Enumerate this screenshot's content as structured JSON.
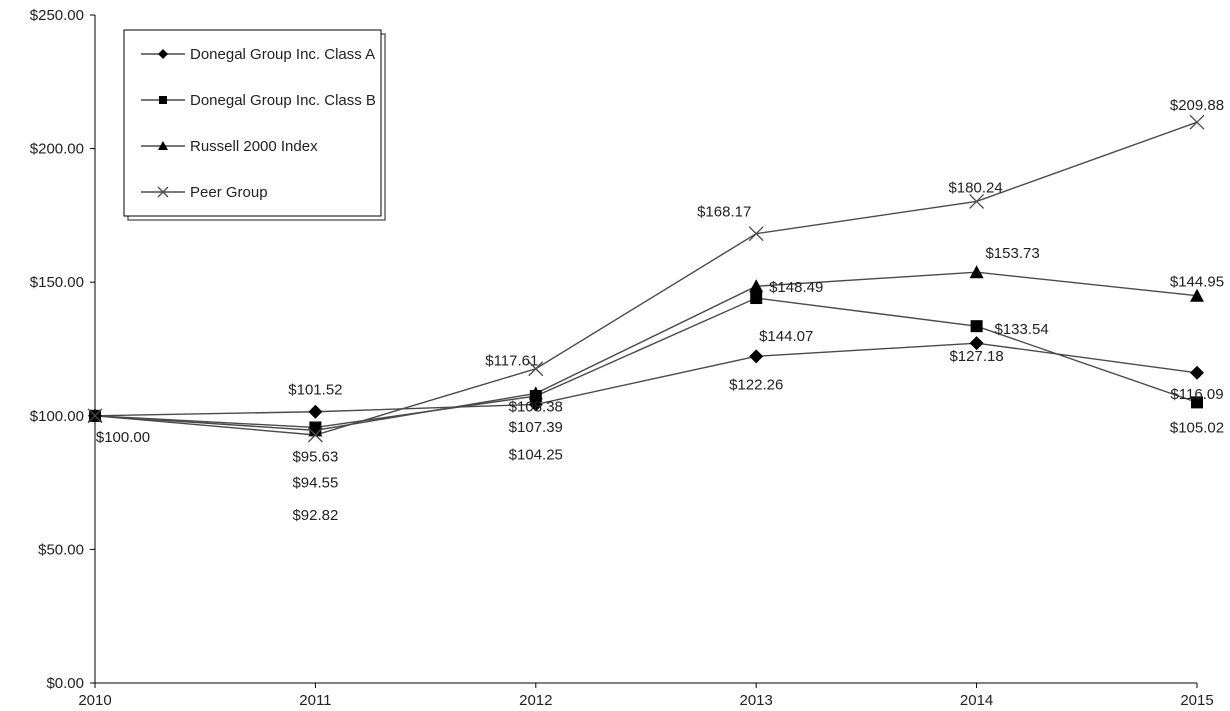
{
  "chart_data": {
    "type": "line",
    "title": "",
    "xlabel": "",
    "ylabel": "",
    "categories": [
      "2010",
      "2011",
      "2012",
      "2013",
      "2014",
      "2015"
    ],
    "ylim": [
      0,
      250
    ],
    "y_ticks": [
      "$0.00",
      "$50.00",
      "$100.00",
      "$150.00",
      "$200.00",
      "$250.00"
    ],
    "grid": false,
    "legend_position": "top-left",
    "series": [
      {
        "name": "Donegal Group Inc. Class A",
        "marker": "diamond",
        "values": [
          100.0,
          101.52,
          104.25,
          122.26,
          127.18,
          116.09
        ],
        "labels": [
          "$100.00",
          "$101.52",
          "$104.25",
          "$122.26",
          "$127.18",
          "$116.09"
        ]
      },
      {
        "name": "Donegal Group Inc. Class B",
        "marker": "square",
        "values": [
          100.0,
          95.63,
          107.39,
          144.07,
          133.54,
          105.02
        ],
        "labels": [
          "",
          "$95.63",
          "$107.39",
          "$144.07",
          "$133.54",
          "$105.02"
        ]
      },
      {
        "name": "Russell 2000 Index",
        "marker": "triangle",
        "values": [
          100.0,
          94.55,
          108.38,
          148.49,
          153.73,
          144.95
        ],
        "labels": [
          "",
          "$94.55",
          "$108.38",
          "$148.49",
          "$153.73",
          "$144.95"
        ]
      },
      {
        "name": "Peer Group",
        "marker": "x",
        "values": [
          100.0,
          92.82,
          117.61,
          168.17,
          180.24,
          209.88
        ],
        "labels": [
          "",
          "$92.82",
          "$117.61",
          "$168.17",
          "$180.24",
          "$209.88"
        ]
      }
    ],
    "colors": {
      "line": "#4a4a4a",
      "marker": "#000000",
      "axis": "#000000",
      "text": "#222222"
    }
  }
}
